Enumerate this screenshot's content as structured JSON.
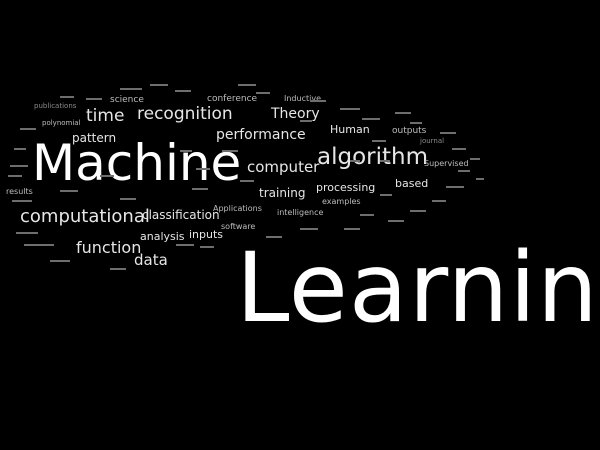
{
  "canvas": {
    "background": "#000000",
    "text_color": "#ffffff"
  },
  "words": {
    "machine": "Machine",
    "learning": "Learning",
    "algorithm": "algorithm",
    "computational": "computational",
    "recognition": "recognition",
    "performance": "performance",
    "computer": "computer",
    "theory": "Theory",
    "function": "function",
    "data": "data",
    "time": "time",
    "pattern": "pattern",
    "classification": "classification",
    "analysis": "analysis",
    "inputs": "inputs",
    "training": "training",
    "based": "based",
    "processing": "processing",
    "human": "Human",
    "science": "science",
    "conference": "conference",
    "inductive": "Inductive",
    "outputs": "outputs",
    "supervised": "Supervised",
    "examples": "examples",
    "intelligence": "intelligence",
    "applications": "Applications",
    "software": "software",
    "results": "results",
    "polynomial": "polynomial",
    "publications": "publications",
    "journal": "journal"
  }
}
